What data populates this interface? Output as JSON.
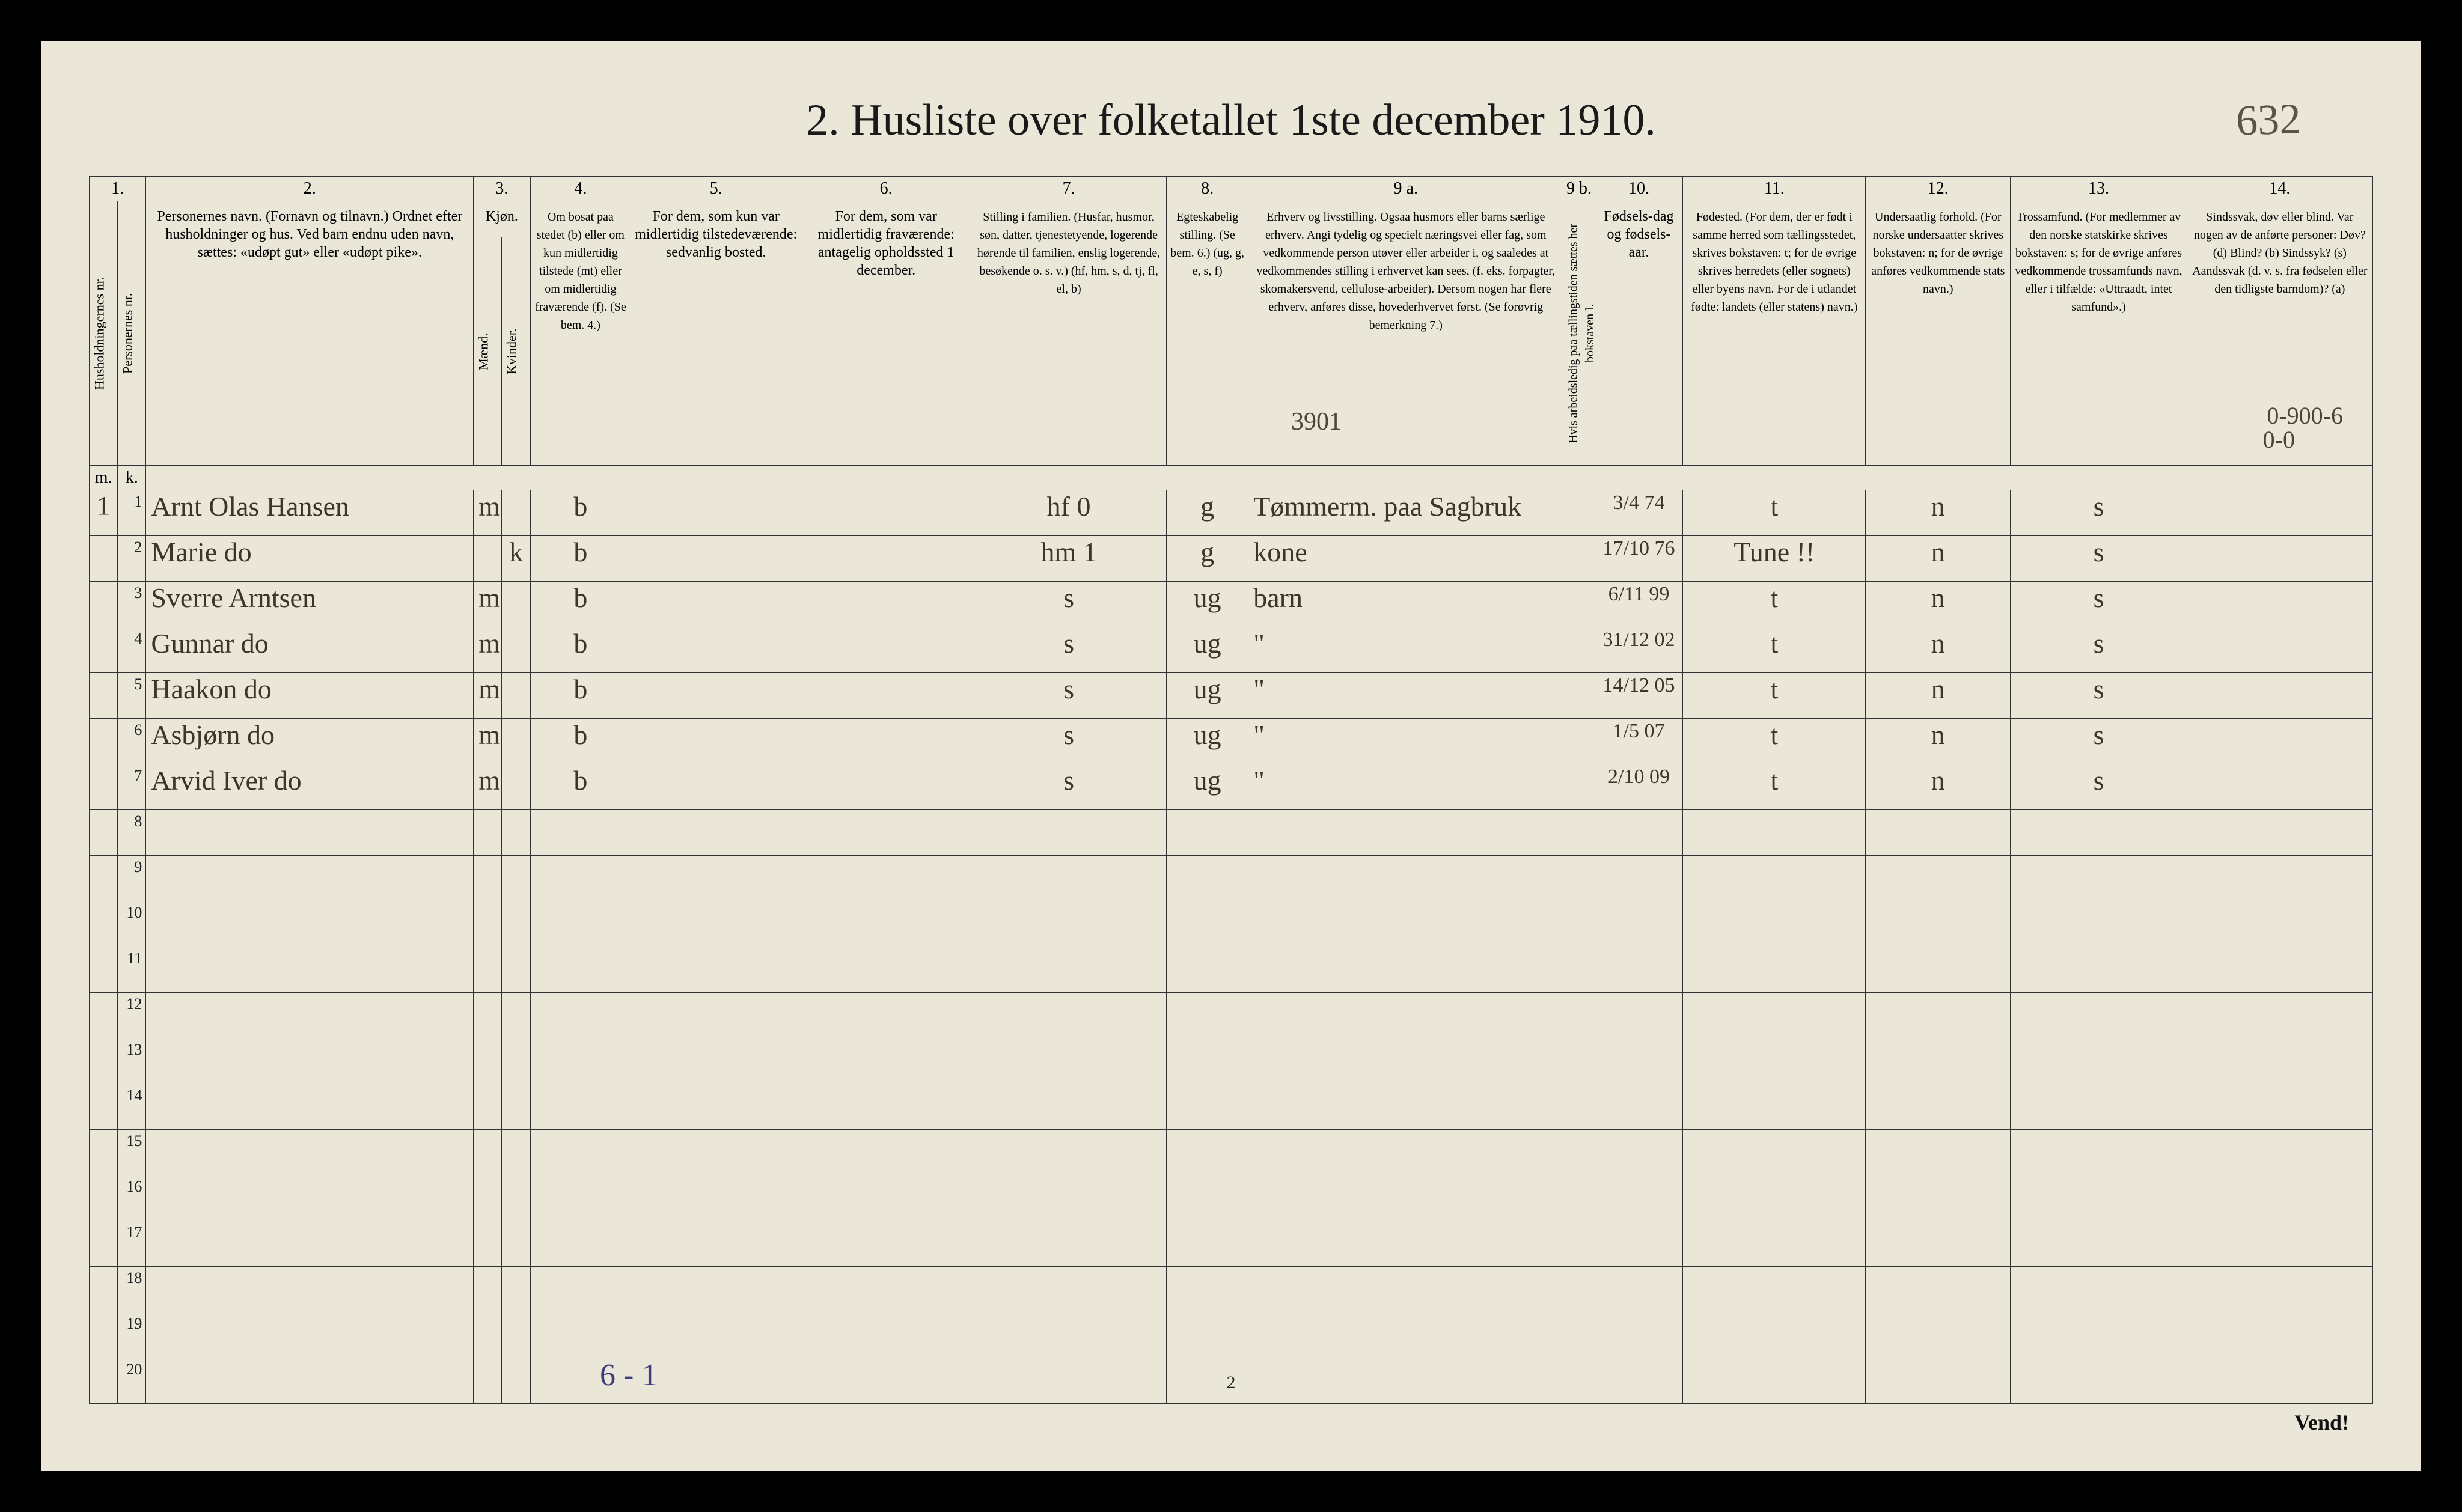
{
  "page_number_handwritten": "632",
  "title": "2.  Husliste over folketallet 1ste december 1910.",
  "column_numbers": [
    "1.",
    "",
    "2.",
    "3.",
    "",
    "4.",
    "5.",
    "6.",
    "7.",
    "8.",
    "9 a.",
    "9 b.",
    "10.",
    "11.",
    "12.",
    "13.",
    "14."
  ],
  "headers": {
    "c1": "Husholdningernes nr.",
    "c1b": "Personernes nr.",
    "c2": "Personernes navn.\n(Fornavn og tilnavn.)\nOrdnet efter husholdninger og hus.\nVed barn endnu uden navn, sættes: «udøpt gut» eller «udøpt pike».",
    "c3": "Kjøn.",
    "c3a": "Mænd.",
    "c3b": "Kvinder.",
    "c4": "Om bosat paa stedet (b) eller om kun midlertidig tilstede (mt) eller om midlertidig fraværende (f). (Se bem. 4.)",
    "c5": "For dem, som kun var midlertidig tilstedeværende:\nsedvanlig bosted.",
    "c6": "For dem, som var midlertidig fraværende:\nantagelig opholdssted 1 december.",
    "c7": "Stilling i familien.\n(Husfar, husmor, søn, datter, tjenestetyende, logerende hørende til familien, enslig logerende, besøkende o. s. v.)\n(hf, hm, s, d, tj, fl, el, b)",
    "c8": "Egteskabelig stilling.\n(Se bem. 6.)\n(ug, g, e, s, f)",
    "c9a": "Erhverv og livsstilling.\nOgsaa husmors eller barns særlige erhverv. Angi tydelig og specielt næringsvei eller fag, som vedkommende person utøver eller arbeider i, og saaledes at vedkommendes stilling i erhvervet kan sees, (f. eks. forpagter, skomakersvend, cellulose-arbeider). Dersom nogen har flere erhverv, anføres disse, hovederhvervet først.\n(Se forøvrig bemerkning 7.)",
    "c9b": "Hvis arbeidsledig paa tællingstiden sættes her bokstaven l.",
    "c10": "Fødsels-dag og fødsels-aar.",
    "c11": "Fødested.\n(For dem, der er født i samme herred som tællingsstedet, skrives bokstaven: t; for de øvrige skrives herredets (eller sognets) eller byens navn. For de i utlandet fødte: landets (eller statens) navn.)",
    "c12": "Undersaatlig forhold.\n(For norske undersaatter skrives bokstaven: n; for de øvrige anføres vedkommende stats navn.)",
    "c13": "Trossamfund.\n(For medlemmer av den norske statskirke skrives bokstaven: s; for de øvrige anføres vedkommende trossamfunds navn, eller i tilfælde: «Uttraadt, intet samfund».)",
    "c14": "Sindssvak, døv eller blind.\nVar nogen av de anførte personer:\nDøv? (d)\nBlind? (b)\nSindssyk? (s)\nAandssvak (d. v. s. fra fødselen eller den tidligste barndom)? (a)"
  },
  "overlay_3901": "3901",
  "overlay_right14": "0-900-6",
  "overlay_right14b": "0-0",
  "rows": [
    {
      "hh": "1",
      "num": "1",
      "name": "Arnt Olas Hansen",
      "sex": "m",
      "res": "b",
      "fam": "hf   0",
      "civ": "g",
      "occ": "Tømmerm. paa Sagbruk",
      "born": "3/4 74",
      "place": "t",
      "nat": "n",
      "rel": "s"
    },
    {
      "hh": "",
      "num": "2",
      "name": "Marie    do",
      "sex": "k",
      "res": "b",
      "fam": "hm   1",
      "civ": "g",
      "occ": "kone",
      "born": "17/10 76",
      "place": "Tune !!",
      "nat": "n",
      "rel": "s"
    },
    {
      "hh": "",
      "num": "3",
      "name": "Sverre Arntsen",
      "sex": "m",
      "res": "b",
      "fam": "s",
      "civ": "ug",
      "occ": "barn",
      "born": "6/11 99",
      "place": "t",
      "nat": "n",
      "rel": "s"
    },
    {
      "hh": "",
      "num": "4",
      "name": "Gunnar   do",
      "sex": "m",
      "res": "b",
      "fam": "s",
      "civ": "ug",
      "occ": "\"",
      "born": "31/12 02",
      "place": "t",
      "nat": "n",
      "rel": "s"
    },
    {
      "hh": "",
      "num": "5",
      "name": "Haakon   do",
      "sex": "m",
      "res": "b",
      "fam": "s",
      "civ": "ug",
      "occ": "\"",
      "born": "14/12 05",
      "place": "t",
      "nat": "n",
      "rel": "s"
    },
    {
      "hh": "",
      "num": "6",
      "name": "Asbjørn  do",
      "sex": "m",
      "res": "b",
      "fam": "s",
      "civ": "ug",
      "occ": "\"",
      "born": "1/5 07",
      "place": "t",
      "nat": "n",
      "rel": "s"
    },
    {
      "hh": "",
      "num": "7",
      "name": "Arvid Iver do",
      "sex": "m",
      "res": "b",
      "fam": "s",
      "civ": "ug",
      "occ": "\"",
      "born": "2/10 09",
      "place": "t",
      "nat": "n",
      "rel": "s"
    }
  ],
  "empty_row_count": 13,
  "footer_note": "6 - 1",
  "page_number_bottom": "2",
  "vend": "Vend!",
  "colors": {
    "page_bg": "#ebe7d8",
    "ink": "#1a1a1a",
    "handwriting": "#3a362a",
    "border": "#333333",
    "blue_pencil": "#3b3e7a"
  },
  "fontsizes": {
    "title": 74,
    "colnum": 28,
    "header": 24,
    "header_small": 20,
    "rownum": 26,
    "handwriting": 46,
    "top_handwritten": 72
  }
}
